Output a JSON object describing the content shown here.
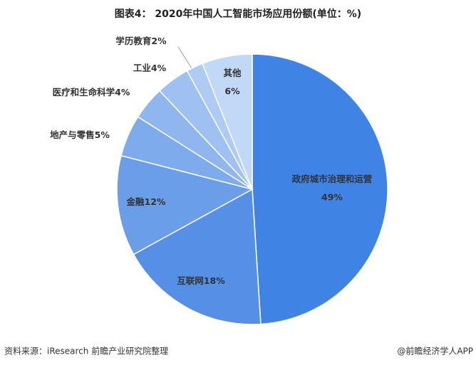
{
  "chart_data": {
    "type": "pie",
    "title": "图表4： 2020年中国人工智能市场应用份额(单位：%)",
    "categories": [
      "政府城市治理和运营",
      "互联网",
      "金融",
      "地产与零售",
      "医疗和生命科学",
      "工业",
      "学历教育",
      "其他"
    ],
    "values": [
      49,
      18,
      12,
      5,
      4,
      4,
      2,
      6
    ],
    "value_labels": [
      "49%",
      "18%",
      "12%",
      "5%",
      "4%",
      "4%",
      "2%",
      "6%"
    ],
    "colors": [
      "#3f83e4",
      "#5590e6",
      "#6a9ee9",
      "#7eabec",
      "#8fb6ee",
      "#9fc1f1",
      "#aecbf3",
      "#c2d8f7"
    ],
    "source": "资料来源：iResearch 前瞻产业研究院整理",
    "credit": "@前瞻经济学人APP"
  }
}
